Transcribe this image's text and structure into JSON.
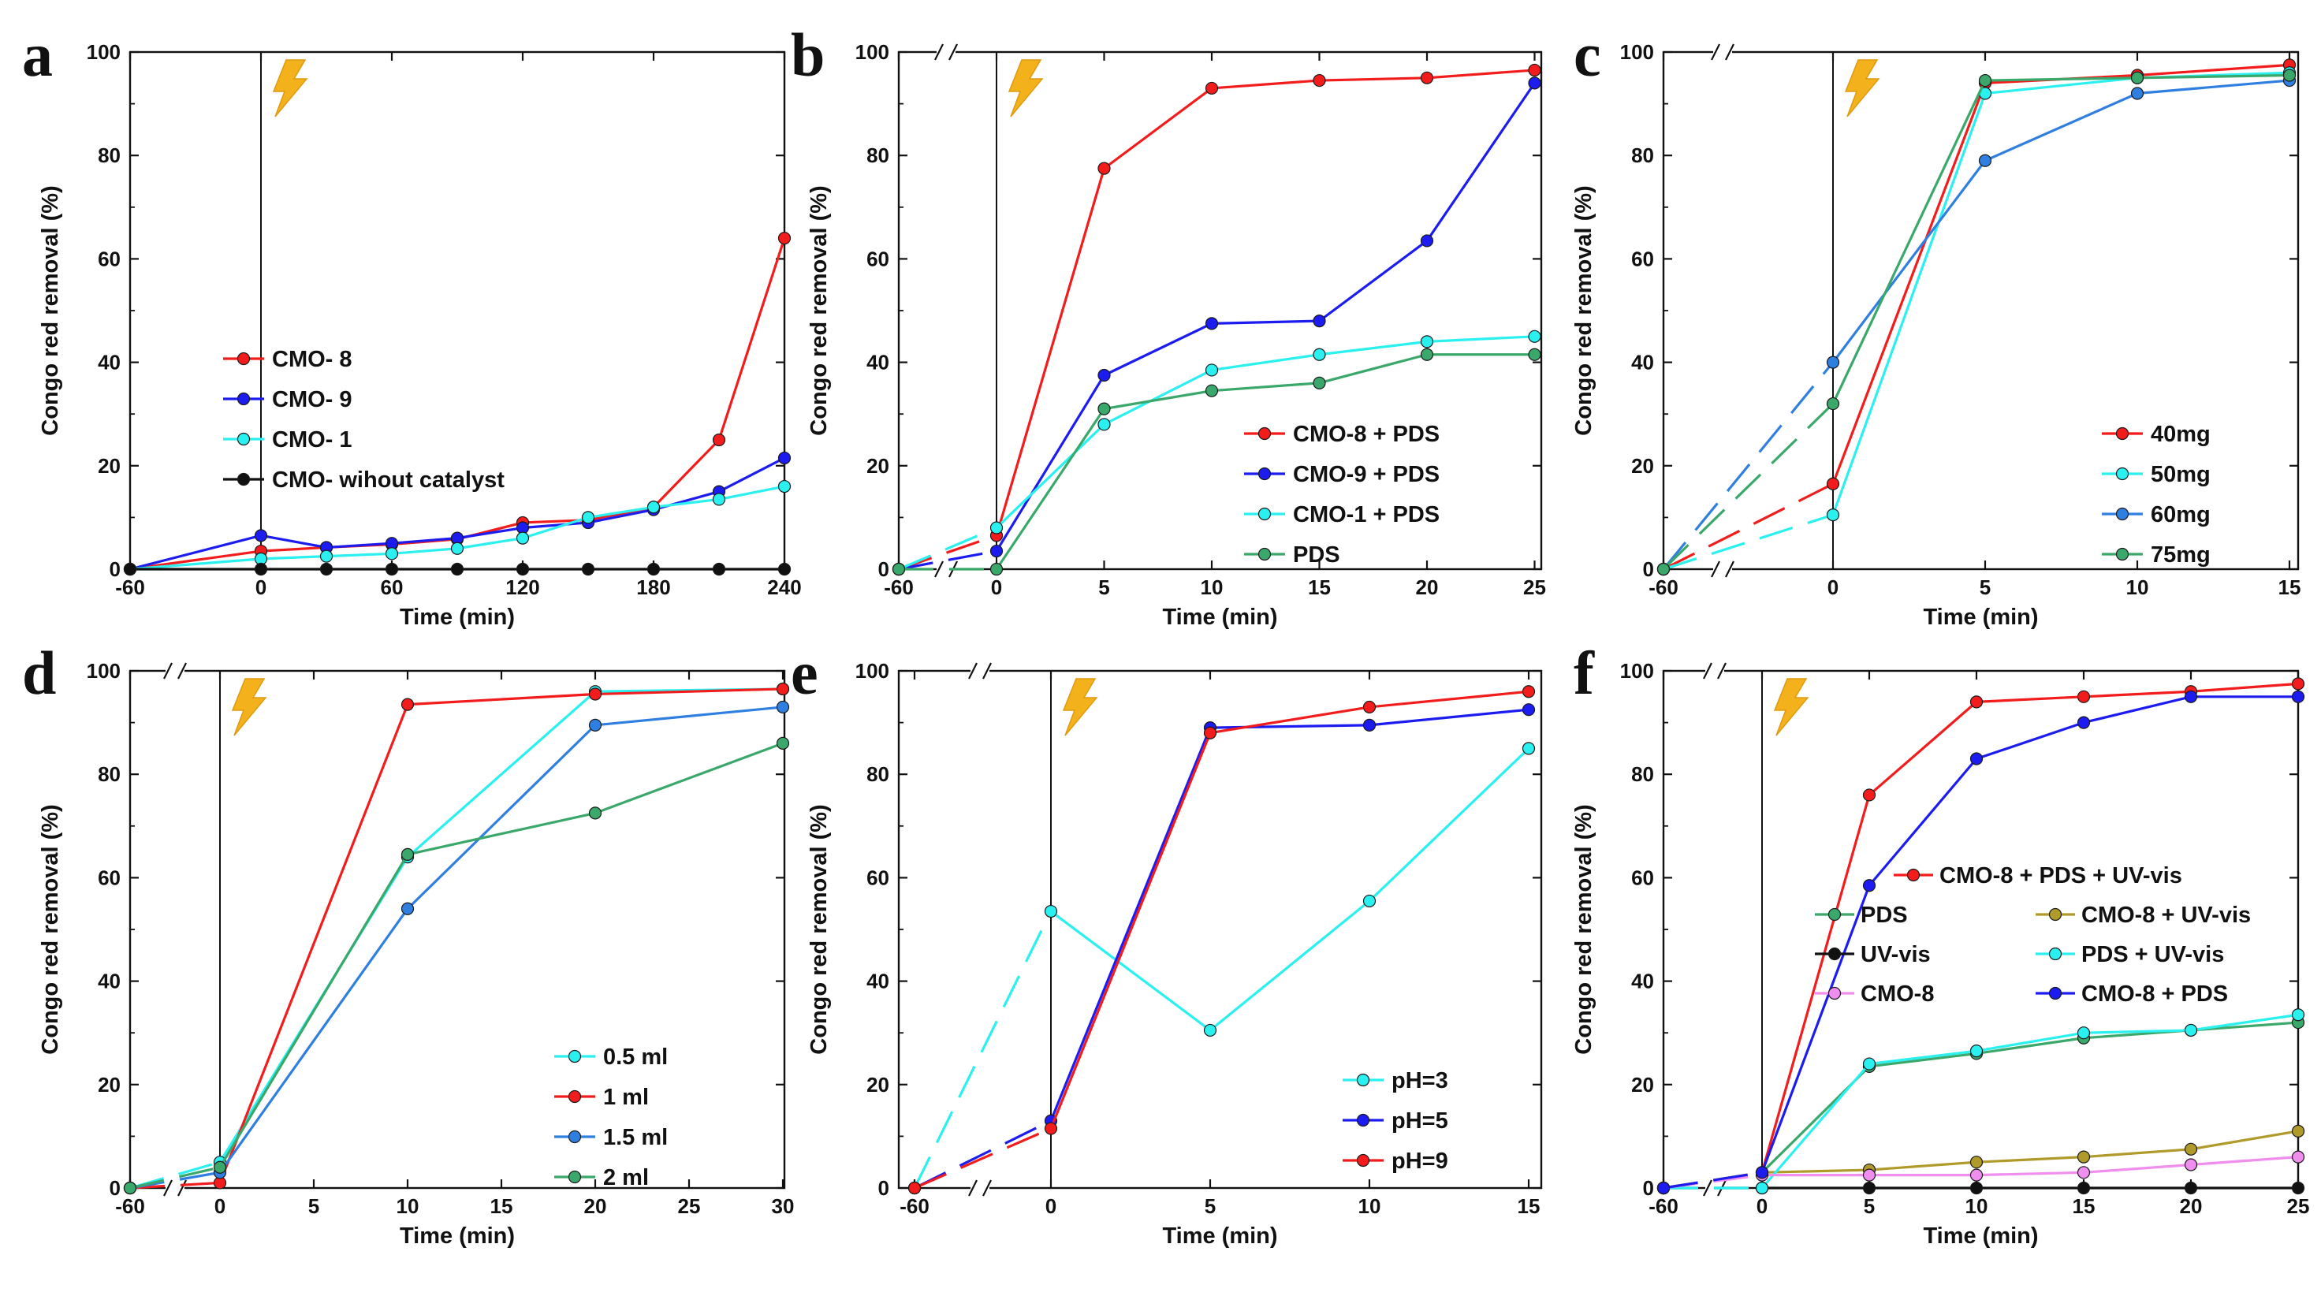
{
  "figure": {
    "ylabel": "Congo red removal (%)",
    "xlabel": "Time (min)",
    "colors": {
      "red": "#f21c1c",
      "blue": "#1c1cf0",
      "cyan": "#2af0f0",
      "black": "#111111",
      "green": "#3aa86a",
      "mid_blue": "#2f7fe0",
      "olive": "#b09a2a",
      "pink": "#f08ef0",
      "bolt": "#f3b11c"
    }
  },
  "chart_data": [
    {
      "panel": "a",
      "type": "line",
      "xlabel": "Time (min)",
      "ylabel": "Congo red removal (%)",
      "x": [
        -60,
        0,
        30,
        60,
        90,
        120,
        150,
        180,
        210,
        240
      ],
      "xticks": [
        "-60",
        "0",
        "60",
        "120",
        "180",
        "240"
      ],
      "ylim": [
        0,
        100
      ],
      "yticks": [
        0,
        20,
        40,
        60,
        80,
        100
      ],
      "series": [
        {
          "name": "CMO- 8",
          "color": "red",
          "values": [
            0,
            3.5,
            4.2,
            4.8,
            5.8,
            9,
            9.5,
            12,
            25,
            64
          ]
        },
        {
          "name": "CMO- 9",
          "color": "blue",
          "values": [
            0,
            6.5,
            4.2,
            5.0,
            6.0,
            8.0,
            9.0,
            11.5,
            15,
            21.5
          ]
        },
        {
          "name": "CMO- 1",
          "color": "cyan",
          "values": [
            0,
            2.0,
            2.5,
            3.0,
            4.0,
            6.0,
            10,
            12,
            13.5,
            16
          ]
        },
        {
          "name": "CMO- wihout catalyst",
          "color": "black",
          "values": [
            0,
            0,
            0,
            0,
            0,
            0,
            0,
            0,
            0,
            0
          ]
        }
      ]
    },
    {
      "panel": "b",
      "type": "line",
      "xlabel": "Time (min)",
      "ylabel": "Congo red removal (%)",
      "x": [
        -60,
        0,
        5,
        10,
        15,
        20,
        25
      ],
      "xticks": [
        "-60",
        "0",
        "5",
        "10",
        "15",
        "20",
        "25"
      ],
      "ylim": [
        0,
        100
      ],
      "yticks": [
        0,
        20,
        40,
        60,
        80,
        100
      ],
      "series": [
        {
          "name": "CMO-8 + PDS",
          "color": "red",
          "values": [
            0,
            6.5,
            77.5,
            93,
            94.5,
            95,
            96.5
          ]
        },
        {
          "name": "CMO-9 + PDS",
          "color": "blue",
          "values": [
            0,
            3.5,
            37.5,
            47.5,
            48,
            63.5,
            94
          ]
        },
        {
          "name": "CMO-1 + PDS",
          "color": "cyan",
          "values": [
            0,
            8,
            28,
            38.5,
            41.5,
            44,
            45
          ]
        },
        {
          "name": "PDS",
          "color": "green",
          "values": [
            0,
            0,
            31,
            34.5,
            36,
            41.5,
            41.5
          ]
        }
      ]
    },
    {
      "panel": "c",
      "type": "line",
      "xlabel": "Time (min)",
      "ylabel": "Congo red removal (%)",
      "x": [
        -60,
        0,
        5,
        10,
        15
      ],
      "xticks": [
        "-60",
        "0",
        "5",
        "10",
        "15"
      ],
      "ylim": [
        0,
        100
      ],
      "yticks": [
        0,
        20,
        40,
        60,
        80,
        100
      ],
      "series": [
        {
          "name": "40mg",
          "color": "red",
          "values": [
            0,
            16.5,
            94,
            95.5,
            97.5
          ]
        },
        {
          "name": "50mg",
          "color": "cyan",
          "values": [
            0,
            10.5,
            92,
            95,
            96
          ]
        },
        {
          "name": "60mg",
          "color": "mid_blue",
          "values": [
            0,
            40,
            79,
            92,
            94.5
          ]
        },
        {
          "name": "75mg",
          "color": "green",
          "values": [
            0,
            32,
            94.5,
            95,
            95.5
          ]
        }
      ]
    },
    {
      "panel": "d",
      "type": "line",
      "xlabel": "Time (min)",
      "ylabel": "Congo red removal (%)",
      "x": [
        -60,
        0,
        10,
        20,
        30
      ],
      "xticks": [
        "-60",
        "0",
        "5",
        "10",
        "15",
        "20",
        "25",
        "30"
      ],
      "ylim": [
        0,
        100
      ],
      "yticks": [
        0,
        20,
        40,
        60,
        80,
        100
      ],
      "series": [
        {
          "name": "0.5 ml",
          "color": "cyan",
          "values": [
            0,
            5,
            64,
            96,
            96.5
          ]
        },
        {
          "name": "1 ml",
          "color": "red",
          "values": [
            0,
            1,
            93.5,
            95.5,
            96.5
          ]
        },
        {
          "name": "1.5 ml",
          "color": "mid_blue",
          "values": [
            0,
            3,
            54,
            89.5,
            93
          ]
        },
        {
          "name": "2 ml",
          "color": "green",
          "values": [
            0,
            4,
            64.5,
            72.5,
            86
          ]
        }
      ]
    },
    {
      "panel": "e",
      "type": "line",
      "xlabel": "Time (min)",
      "ylabel": "Congo red removal (%)",
      "x": [
        -60,
        0,
        5,
        10,
        15
      ],
      "xticks": [
        "-60",
        "0",
        "5",
        "10",
        "15"
      ],
      "ylim": [
        0,
        100
      ],
      "yticks": [
        0,
        20,
        40,
        60,
        80,
        100
      ],
      "series": [
        {
          "name": "pH=3",
          "color": "cyan",
          "values": [
            0,
            53.5,
            30.5,
            55.5,
            85
          ]
        },
        {
          "name": "pH=5",
          "color": "blue",
          "values": [
            0,
            13,
            89,
            89.5,
            92.5
          ]
        },
        {
          "name": "pH=9",
          "color": "red",
          "values": [
            0,
            11.5,
            88,
            93,
            96
          ]
        }
      ]
    },
    {
      "panel": "f",
      "type": "line",
      "xlabel": "Time (min)",
      "ylabel": "Congo red removal (%)",
      "x": [
        -60,
        0,
        5,
        10,
        15,
        20,
        25
      ],
      "xticks": [
        "-60",
        "0",
        "5",
        "10",
        "15",
        "20",
        "25"
      ],
      "ylim": [
        0,
        100
      ],
      "yticks": [
        0,
        20,
        40,
        60,
        80,
        100
      ],
      "series": [
        {
          "name": "CMO-8 + PDS + UV-vis",
          "color": "red",
          "values": [
            0,
            3,
            76,
            94,
            95,
            96,
            97.5
          ]
        },
        {
          "name": "PDS",
          "color": "green",
          "values": [
            0,
            3,
            23.5,
            26,
            29,
            30.5,
            32
          ]
        },
        {
          "name": "CMO-8 + UV-vis",
          "color": "olive",
          "values": [
            0,
            3,
            3.5,
            5,
            6,
            7.5,
            11
          ]
        },
        {
          "name": "UV-vis",
          "color": "black",
          "values": [
            0,
            0,
            0,
            0,
            0,
            0,
            0
          ]
        },
        {
          "name": "PDS + UV-vis",
          "color": "cyan",
          "values": [
            0,
            0,
            24,
            26.5,
            30,
            30.5,
            33.5
          ]
        },
        {
          "name": "CMO-8",
          "color": "pink",
          "values": [
            0,
            2.5,
            2.5,
            2.5,
            3,
            4.5,
            6
          ]
        },
        {
          "name": "CMO-8 + PDS",
          "color": "blue",
          "values": [
            0,
            3,
            58.5,
            83,
            90,
            95,
            95
          ]
        }
      ]
    }
  ]
}
